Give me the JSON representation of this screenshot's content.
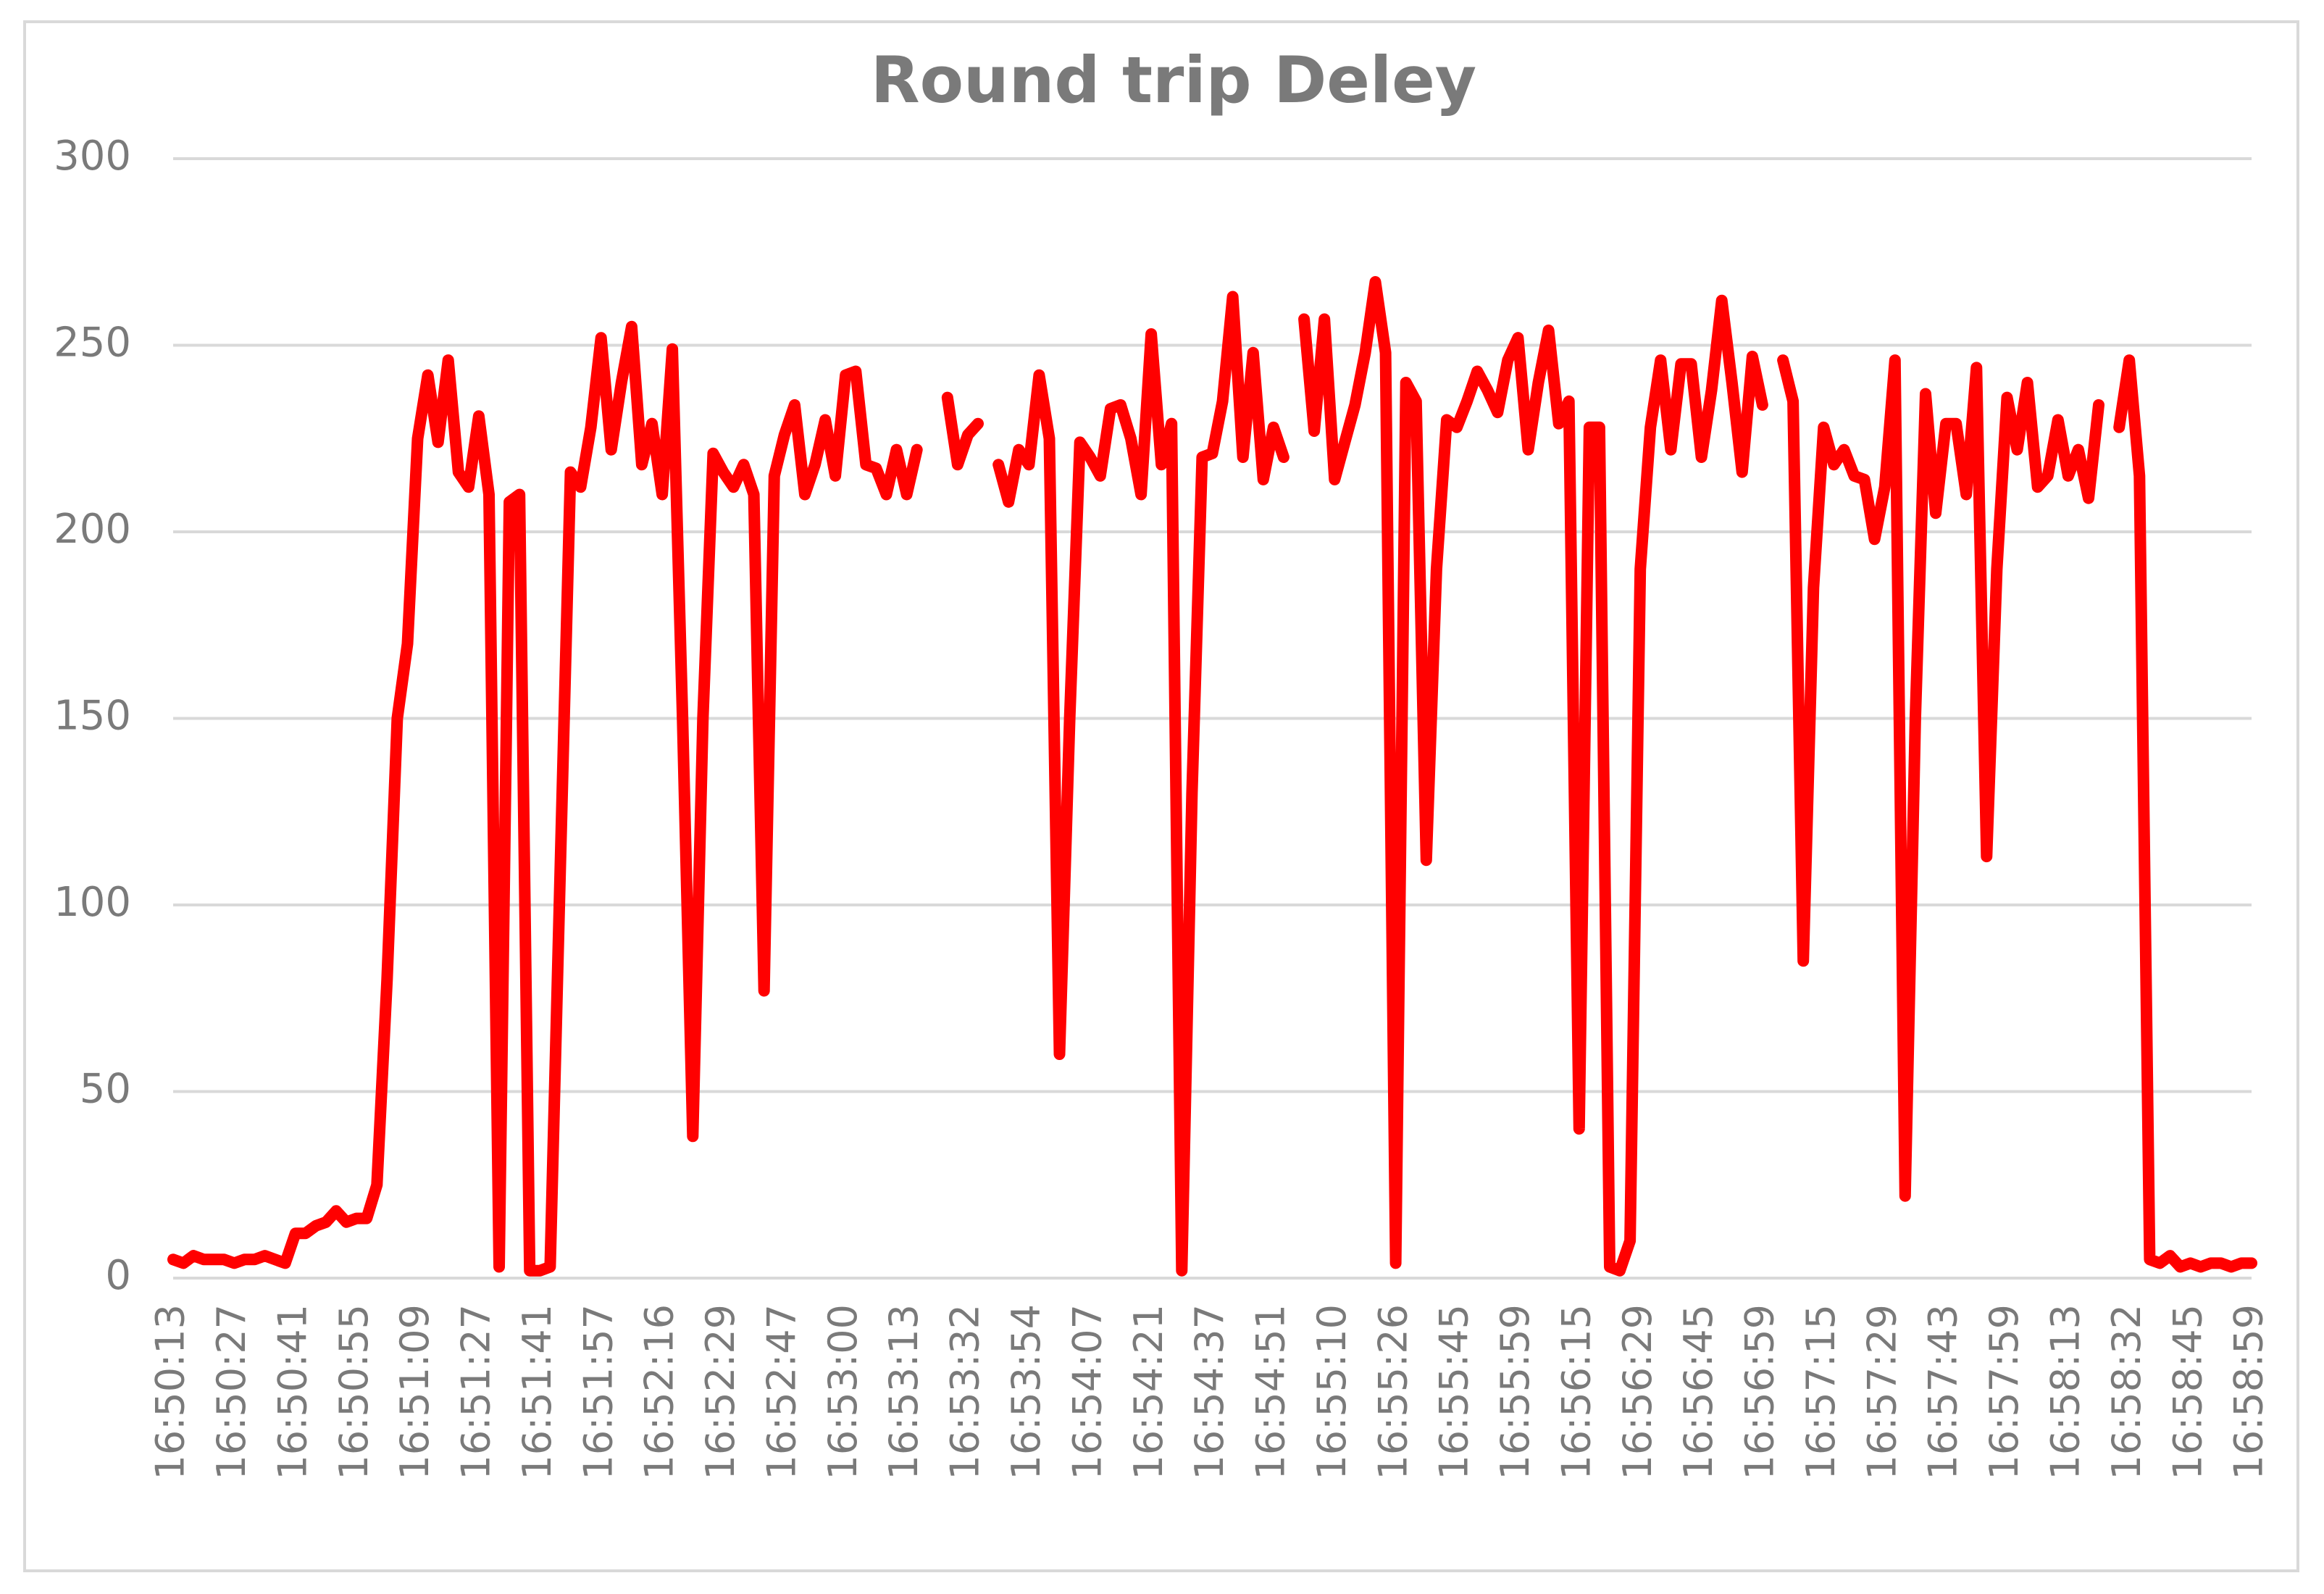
{
  "chart_data": {
    "type": "line",
    "title": "Round trip Deley",
    "categories": [
      "16:50:13",
      null,
      null,
      null,
      null,
      null,
      "16:50:27",
      null,
      null,
      null,
      null,
      null,
      "16:50:41",
      null,
      null,
      null,
      null,
      null,
      "16:50:55",
      null,
      null,
      null,
      null,
      null,
      "16:51:09",
      null,
      null,
      null,
      null,
      null,
      "16:51:27",
      null,
      null,
      null,
      null,
      null,
      "16:51:41",
      null,
      null,
      null,
      null,
      null,
      "16:51:57",
      null,
      null,
      null,
      null,
      null,
      "16:52:16",
      null,
      null,
      null,
      null,
      null,
      "16:52:29",
      null,
      null,
      null,
      null,
      null,
      "16:52:47",
      null,
      null,
      null,
      null,
      null,
      "16:53:00",
      null,
      null,
      null,
      null,
      null,
      "16:53:13",
      null,
      null,
      null,
      null,
      null,
      "16:53:32",
      null,
      null,
      null,
      null,
      null,
      "16:53:54",
      null,
      null,
      null,
      null,
      null,
      "16:54:07",
      null,
      null,
      null,
      null,
      null,
      "16:54:21",
      null,
      null,
      null,
      null,
      null,
      "16:54:37",
      null,
      null,
      null,
      null,
      null,
      "16:54:51",
      null,
      null,
      null,
      null,
      null,
      "16:55:10",
      null,
      null,
      null,
      null,
      null,
      "16:55:26",
      null,
      null,
      null,
      null,
      null,
      "16:55:45",
      null,
      null,
      null,
      null,
      null,
      "16:55:59",
      null,
      null,
      null,
      null,
      null,
      "16:56:15",
      null,
      null,
      null,
      null,
      null,
      "16:56:29",
      null,
      null,
      null,
      null,
      null,
      "16:56:45",
      null,
      null,
      null,
      null,
      null,
      "16:56:59",
      null,
      null,
      null,
      null,
      null,
      "16:57:15",
      null,
      null,
      null,
      null,
      null,
      "16:57:29",
      null,
      null,
      null,
      null,
      null,
      "16:57:43",
      null,
      null,
      null,
      null,
      null,
      "16:57:59",
      null,
      null,
      null,
      null,
      null,
      "16:58:13",
      null,
      null,
      null,
      null,
      null,
      "16:58:32",
      null,
      null,
      null,
      null,
      null,
      "16:58:45",
      null,
      null,
      null,
      null,
      null,
      "16:58:59"
    ],
    "values": [
      5,
      4,
      6,
      5,
      5,
      5,
      4,
      5,
      5,
      6,
      5,
      4,
      12,
      12,
      14,
      15,
      18,
      15,
      16,
      16,
      25,
      80,
      150,
      170,
      225,
      242,
      224,
      246,
      216,
      212,
      231,
      210,
      3,
      208,
      210,
      2,
      2,
      3,
      110,
      216,
      212,
      228,
      252,
      222,
      240,
      255,
      218,
      229,
      210,
      249,
      150,
      38,
      150,
      221,
      216,
      212,
      218,
      210,
      77,
      215,
      226,
      234,
      210,
      218,
      230,
      215,
      242,
      243,
      218,
      217,
      210,
      222,
      210,
      222,
      null,
      null,
      236,
      218,
      226,
      229,
      null,
      218,
      208,
      222,
      218,
      242,
      225,
      60,
      150,
      224,
      220,
      215,
      233,
      234,
      225,
      210,
      253,
      218,
      229,
      2,
      130,
      220,
      221,
      235,
      263,
      220,
      248,
      214,
      228,
      220,
      null,
      257,
      227,
      257,
      214,
      224,
      234,
      248,
      267,
      248,
      4,
      240,
      235,
      112,
      190,
      230,
      228,
      235,
      243,
      238,
      232,
      246,
      252,
      222,
      240,
      254,
      229,
      235,
      40,
      228,
      228,
      3,
      2,
      10,
      190,
      228,
      246,
      222,
      245,
      245,
      220,
      238,
      262,
      240,
      216,
      247,
      234,
      null,
      246,
      235,
      85,
      185,
      228,
      218,
      222,
      215,
      214,
      198,
      212,
      246,
      22,
      150,
      237,
      205,
      229,
      229,
      210,
      244,
      113,
      190,
      236,
      222,
      240,
      212,
      215,
      230,
      215,
      222,
      209,
      234,
      null,
      228,
      246,
      215,
      5,
      4,
      6,
      3,
      4,
      3,
      4,
      4,
      3,
      4,
      4
    ],
    "color": "#ff0000",
    "ylim": [
      0,
      300
    ],
    "yticks": [
      0,
      50,
      100,
      150,
      200,
      250,
      300
    ],
    "grid": true
  }
}
